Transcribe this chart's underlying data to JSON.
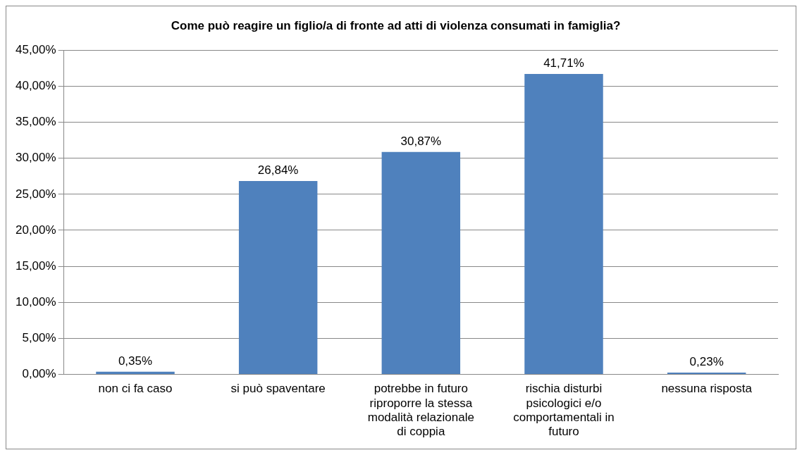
{
  "chart_data": {
    "type": "bar",
    "title": "Come può reagire un figlio/a di fronte ad atti di violenza consumati in famiglia?",
    "categories": [
      "non ci fa caso",
      "si può spaventare",
      "potrebbe in futuro riproporre la stessa modalità relazionale di coppia",
      "rischia disturbi psicologici e/o comportamentali in futuro",
      "nessuna risposta"
    ],
    "values": [
      0.35,
      26.84,
      30.87,
      41.71,
      0.23
    ],
    "value_labels": [
      "0,35%",
      "26,84%",
      "30,87%",
      "41,71%",
      "0,23%"
    ],
    "color": "#4f81bd",
    "ylim": [
      0,
      45
    ],
    "yticks": [
      {
        "value": 0,
        "label": "0,00%"
      },
      {
        "value": 5,
        "label": "5,00%"
      },
      {
        "value": 10,
        "label": "10,00%"
      },
      {
        "value": 15,
        "label": "15,00%"
      },
      {
        "value": 20,
        "label": "20,00%"
      },
      {
        "value": 25,
        "label": "25,00%"
      },
      {
        "value": 30,
        "label": "30,00%"
      },
      {
        "value": 35,
        "label": "35,00%"
      },
      {
        "value": 40,
        "label": "40,00%"
      },
      {
        "value": 45,
        "label": "45,00%"
      }
    ],
    "grid": "y",
    "legend": false
  }
}
